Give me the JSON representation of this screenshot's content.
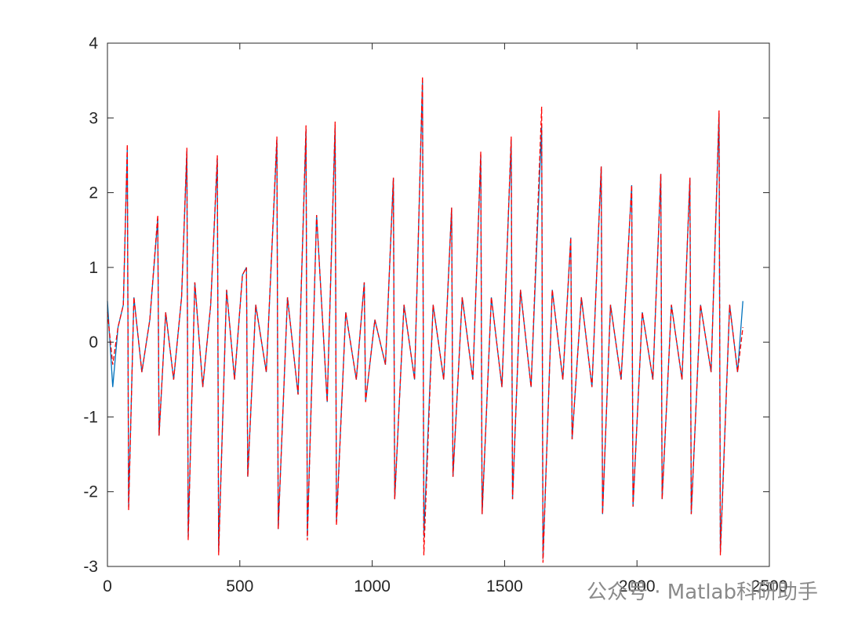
{
  "chart_data": {
    "type": "line",
    "x": [
      0,
      20,
      40,
      60,
      75,
      80,
      100,
      130,
      160,
      190,
      195,
      220,
      250,
      280,
      300,
      305,
      330,
      360,
      390,
      415,
      420,
      450,
      480,
      510,
      525,
      530,
      560,
      600,
      640,
      645,
      680,
      720,
      750,
      755,
      790,
      830,
      860,
      865,
      900,
      940,
      970,
      975,
      1010,
      1050,
      1080,
      1085,
      1120,
      1160,
      1190,
      1195,
      1230,
      1270,
      1300,
      1305,
      1340,
      1380,
      1410,
      1415,
      1450,
      1490,
      1525,
      1530,
      1560,
      1600,
      1640,
      1645,
      1680,
      1720,
      1750,
      1755,
      1790,
      1830,
      1865,
      1870,
      1900,
      1940,
      1980,
      1985,
      2020,
      2060,
      2090,
      2095,
      2130,
      2170,
      2200,
      2205,
      2240,
      2280,
      2310,
      2315,
      2350,
      2380,
      2400
    ],
    "series": [
      {
        "color": "#0072bd",
        "dash": false,
        "values": [
          0.55,
          -0.6,
          0.2,
          0.5,
          2.6,
          -2.2,
          0.6,
          -0.4,
          0.3,
          1.65,
          -1.25,
          0.4,
          -0.5,
          0.6,
          2.55,
          -2.6,
          0.8,
          -0.6,
          0.5,
          2.45,
          -2.8,
          0.7,
          -0.5,
          0.9,
          1.0,
          -1.8,
          0.5,
          -0.4,
          2.7,
          -2.5,
          0.6,
          -0.7,
          2.85,
          -2.6,
          1.7,
          -0.8,
          2.9,
          -2.4,
          0.4,
          -0.5,
          0.8,
          -0.8,
          0.3,
          -0.3,
          2.2,
          -2.1,
          0.5,
          -0.5,
          3.5,
          -2.6,
          0.5,
          -0.5,
          1.8,
          -1.8,
          0.6,
          -0.5,
          2.5,
          -2.3,
          0.6,
          -0.6,
          2.7,
          -2.1,
          0.7,
          -0.6,
          2.9,
          -2.9,
          0.7,
          -0.5,
          1.4,
          -1.3,
          0.6,
          -0.6,
          2.35,
          -2.3,
          0.5,
          -0.5,
          2.1,
          -2.2,
          0.4,
          -0.5,
          2.25,
          -2.1,
          0.5,
          -0.5,
          2.2,
          -2.3,
          0.5,
          -0.4,
          3.05,
          -2.8,
          0.5,
          -0.4,
          0.55
        ]
      },
      {
        "color": "#ff0000",
        "dash": true,
        "values": [
          0.4,
          -0.3,
          0.2,
          0.5,
          2.65,
          -2.25,
          0.6,
          -0.4,
          0.3,
          1.7,
          -1.25,
          0.4,
          -0.5,
          0.6,
          2.6,
          -2.65,
          0.8,
          -0.6,
          0.5,
          2.5,
          -2.85,
          0.7,
          -0.5,
          0.9,
          1.0,
          -1.8,
          0.5,
          -0.4,
          2.75,
          -2.5,
          0.6,
          -0.7,
          2.9,
          -2.65,
          1.7,
          -0.8,
          2.95,
          -2.45,
          0.4,
          -0.5,
          0.8,
          -0.8,
          0.3,
          -0.3,
          2.2,
          -2.1,
          0.5,
          -0.5,
          3.55,
          -2.85,
          0.5,
          -0.5,
          1.8,
          -1.8,
          0.6,
          -0.5,
          2.55,
          -2.3,
          0.6,
          -0.6,
          2.75,
          -2.1,
          0.7,
          -0.6,
          3.15,
          -2.95,
          0.7,
          -0.5,
          1.4,
          -1.3,
          0.6,
          -0.6,
          2.35,
          -2.3,
          0.5,
          -0.5,
          2.1,
          -2.2,
          0.4,
          -0.5,
          2.25,
          -2.1,
          0.5,
          -0.5,
          2.2,
          -2.3,
          0.5,
          -0.4,
          3.1,
          -2.85,
          0.5,
          -0.4,
          0.2
        ]
      }
    ],
    "xlim": [
      0,
      2500
    ],
    "xticks": [
      0,
      500,
      1000,
      1500,
      2000,
      2500
    ],
    "ylim": [
      -3,
      4
    ],
    "yticks": [
      -3,
      -2,
      -1,
      0,
      1,
      2,
      3,
      4
    ],
    "watermark": "公众号 · Matlab科研助手"
  }
}
